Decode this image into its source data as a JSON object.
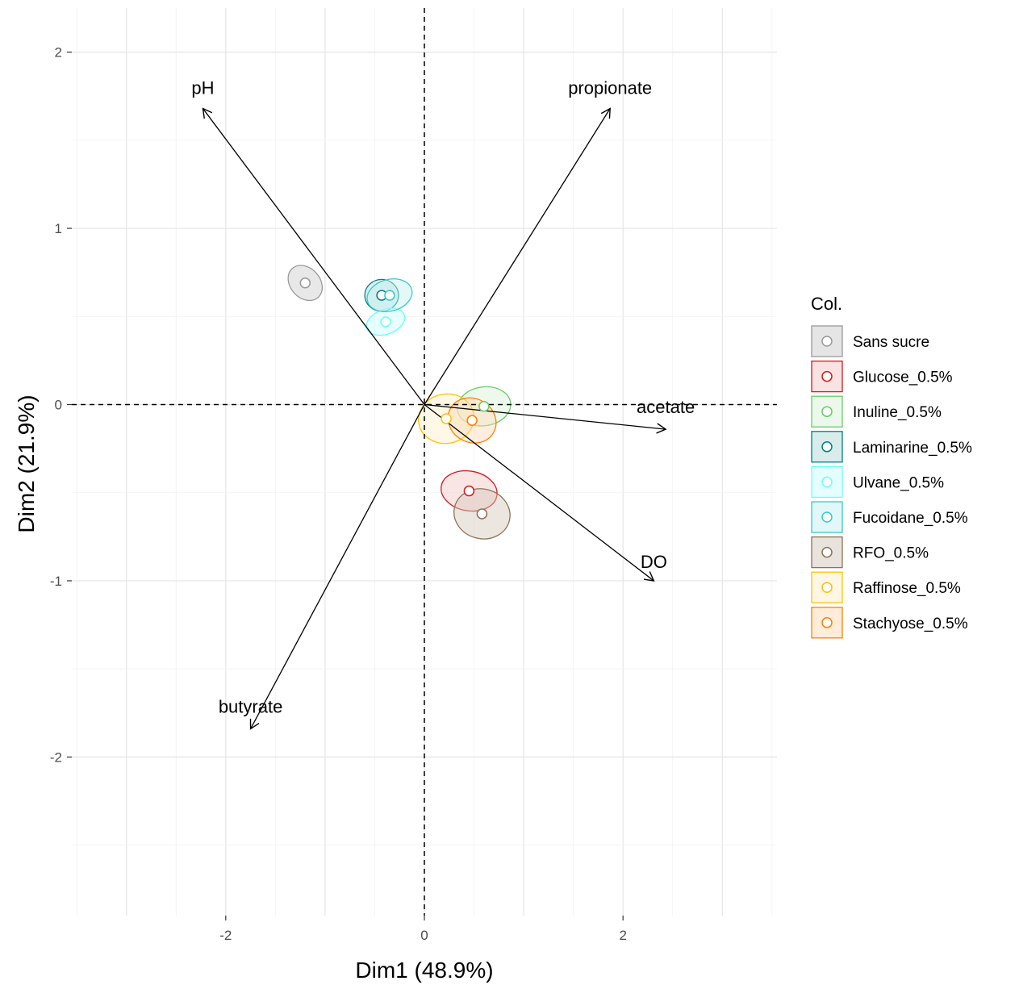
{
  "chart_data": {
    "type": "scatter",
    "subtype": "pca-biplot",
    "xlabel": "Dim1 (48.9%)",
    "ylabel": "Dim2 (21.9%)",
    "xlim": [
      -3.55,
      3.55
    ],
    "ylim": [
      -2.9,
      2.25
    ],
    "x_ticks": [
      -2,
      0,
      2
    ],
    "x_tick_labels": [
      "-2",
      "0",
      "2"
    ],
    "y_ticks": [
      -2,
      -1,
      0,
      1,
      2
    ],
    "y_tick_labels": [
      "-2",
      "-1",
      "0",
      "1",
      "2"
    ],
    "grid": true,
    "reference_lines": {
      "x": 0,
      "y": 0,
      "style": "dashed"
    },
    "legend": {
      "title": "Col.",
      "placement": "right"
    },
    "vectors": [
      {
        "label": "pH",
        "x": -2.23,
        "y": 1.68
      },
      {
        "label": "propionate",
        "x": 1.87,
        "y": 1.68
      },
      {
        "label": "acetate",
        "x": 2.43,
        "y": -0.14
      },
      {
        "label": "DO",
        "x": 2.31,
        "y": -1.0
      },
      {
        "label": "butyrate",
        "x": -1.75,
        "y": -1.84
      }
    ],
    "series": [
      {
        "name": "Sans sucre",
        "color": "#999999",
        "fill": "#cccccc",
        "center": [
          -1.2,
          0.69
        ],
        "ellipse": {
          "rx": 0.15,
          "ry": 0.11,
          "angle": 42
        }
      },
      {
        "name": "Glucose_0.5%",
        "color": "#d7191c",
        "fill": "#f4c6c6",
        "center": [
          0.45,
          -0.49
        ],
        "ellipse": {
          "rx": 0.2,
          "ry": 0.16,
          "angle": 80
        }
      },
      {
        "name": "Inuline_0.5%",
        "color": "#66cc66",
        "fill": "#d9f2d9",
        "center": [
          0.6,
          -0.01
        ],
        "ellipse": {
          "rx": 0.27,
          "ry": 0.11,
          "angle": 8
        }
      },
      {
        "name": "Laminarine_0.5%",
        "color": "#008080",
        "fill": "#b3d9d9",
        "center": [
          -0.43,
          0.62
        ],
        "ellipse": {
          "rx": 0.17,
          "ry": 0.09,
          "angle": 0
        }
      },
      {
        "name": "Ulvane_0.5%",
        "color": "#66ffff",
        "fill": "#ccffff",
        "center": [
          -0.39,
          0.47
        ],
        "ellipse": {
          "rx": 0.2,
          "ry": 0.07,
          "angle": 20
        }
      },
      {
        "name": "Fucoidane_0.5%",
        "color": "#33cccc",
        "fill": "#c6f0f0",
        "center": [
          -0.35,
          0.62
        ],
        "ellipse": {
          "rx": 0.23,
          "ry": 0.09,
          "angle": 15
        }
      },
      {
        "name": "RFO_0.5%",
        "color": "#8b7355",
        "fill": "#d4c8bb",
        "center": [
          0.58,
          -0.62
        ],
        "ellipse": {
          "rx": 0.25,
          "ry": 0.16,
          "angle": 75
        }
      },
      {
        "name": "Raffinose_0.5%",
        "color": "#ffc000",
        "fill": "#fff0c7",
        "center": [
          0.22,
          -0.08
        ],
        "ellipse": {
          "rx": 0.28,
          "ry": 0.14,
          "angle": 10
        }
      },
      {
        "name": "Stachyose_0.5%",
        "color": "#ff7f00",
        "fill": "#ffd9b3",
        "center": [
          0.48,
          -0.09
        ],
        "ellipse": {
          "rx": 0.22,
          "ry": 0.14,
          "angle": 60
        }
      }
    ]
  }
}
